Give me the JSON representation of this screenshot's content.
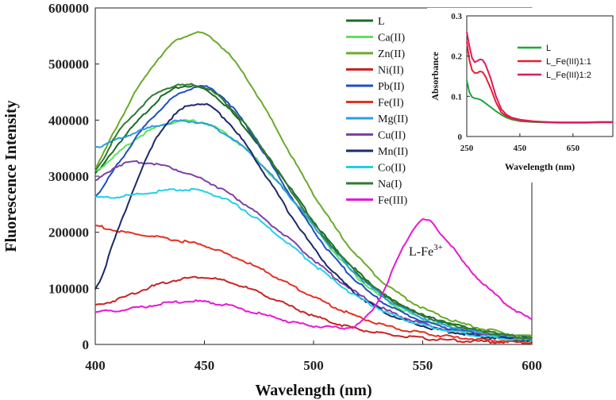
{
  "chart_data": [
    {
      "type": "line",
      "title": "",
      "xlabel": "Wavelength  (nm)",
      "ylabel": "Fluorescence Intensity",
      "xlim": [
        400,
        600
      ],
      "ylim": [
        0,
        600000
      ],
      "x_ticks": [
        400,
        450,
        500,
        550,
        600
      ],
      "y_ticks": [
        0,
        100000,
        200000,
        300000,
        400000,
        500000,
        600000
      ],
      "x": [
        400,
        410,
        420,
        430,
        440,
        450,
        460,
        470,
        480,
        490,
        500,
        510,
        520,
        530,
        540,
        550,
        560,
        570,
        580,
        590,
        600
      ],
      "series": [
        {
          "name": "L",
          "color": "#1b6b25",
          "values": [
            305000,
            355000,
            400000,
            440000,
            460000,
            455000,
            425000,
            380000,
            330000,
            275000,
            220000,
            170000,
            130000,
            95000,
            70000,
            52000,
            40000,
            30000,
            22000,
            16000,
            12000
          ]
        },
        {
          "name": "Ca(II)",
          "color": "#5ce35c",
          "values": [
            310000,
            340000,
            370000,
            390000,
            398000,
            395000,
            375000,
            345000,
            305000,
            260000,
            210000,
            162000,
            120000,
            88000,
            64000,
            46000,
            34000,
            25000,
            18000,
            13000,
            9000
          ]
        },
        {
          "name": "Zn(II)",
          "color": "#6aaa2a",
          "values": [
            318000,
            390000,
            460000,
            515000,
            548000,
            553000,
            522000,
            470000,
            405000,
            335000,
            268000,
            208000,
            158000,
            118000,
            88000,
            65000,
            48000,
            35000,
            26000,
            19000,
            14000
          ]
        },
        {
          "name": "Ni(II)",
          "color": "#c72424",
          "values": [
            70000,
            80000,
            95000,
            108000,
            117000,
            120000,
            112000,
            100000,
            84000,
            67000,
            51000,
            38000,
            28000,
            20000,
            15000,
            11000,
            8000,
            6000,
            5000,
            4000,
            3000
          ]
        },
        {
          "name": "Pb(II)",
          "color": "#1f4fc2",
          "values": [
            265000,
            320000,
            375000,
            420000,
            450000,
            460000,
            435000,
            385000,
            325000,
            262000,
            203000,
            152000,
            112000,
            80000,
            58000,
            42000,
            31000,
            23000,
            17000,
            12000,
            9000
          ]
        },
        {
          "name": "Fe(II)",
          "color": "#e3311e",
          "values": [
            212000,
            202000,
            196000,
            190000,
            184000,
            176000,
            162000,
            145000,
            126000,
            105000,
            85000,
            66000,
            50000,
            37000,
            27000,
            20000,
            15000,
            11000,
            8000,
            6000,
            4000
          ]
        },
        {
          "name": "Mg(II)",
          "color": "#2a9ee0",
          "values": [
            352000,
            365000,
            380000,
            392000,
            398000,
            393000,
            374000,
            344000,
            305000,
            260000,
            212000,
            165000,
            124000,
            91000,
            66000,
            48000,
            35000,
            26000,
            19000,
            14000,
            10000
          ]
        },
        {
          "name": "Cu(II)",
          "color": "#7e3fa8",
          "values": [
            292000,
            318000,
            325000,
            320000,
            308000,
            293000,
            272000,
            246000,
            216000,
            184000,
            151000,
            119000,
            91000,
            68000,
            50000,
            37000,
            27000,
            20000,
            15000,
            11000,
            8000
          ]
        },
        {
          "name": "Mn(II)",
          "color": "#1c2a66",
          "values": [
            100000,
            200000,
            300000,
            380000,
            420000,
            428000,
            400000,
            350000,
            290000,
            228000,
            172000,
            125000,
            89000,
            63000,
            45000,
            33000,
            24000,
            18000,
            13000,
            10000,
            7000
          ]
        },
        {
          "name": "Co(II)",
          "color": "#22d0e8",
          "values": [
            262000,
            263000,
            268000,
            273000,
            276000,
            272000,
            258000,
            235000,
            206000,
            175000,
            143000,
            112000,
            85000,
            64000,
            47000,
            35000,
            26000,
            19000,
            14000,
            10000,
            7000
          ]
        },
        {
          "name": "Na(I)",
          "color": "#2f7a2f",
          "values": [
            312000,
            375000,
            420000,
            452000,
            462000,
            458000,
            430000,
            385000,
            330000,
            272000,
            217000,
            168000,
            128000,
            95000,
            70000,
            52000,
            39000,
            29000,
            21000,
            15000,
            11000
          ]
        },
        {
          "name": "Fe(III)",
          "color": "#e619d3",
          "values": [
            58000,
            60000,
            66000,
            72000,
            76000,
            76000,
            70000,
            60000,
            50000,
            40000,
            33000,
            30000,
            35000,
            80000,
            165000,
            222000,
            190000,
            140000,
            100000,
            68000,
            45000
          ]
        }
      ],
      "annotations": [
        {
          "text_main": "L-Fe",
          "text_sup": "3+"
        }
      ],
      "legend": "top-right"
    },
    {
      "type": "line",
      "title": "",
      "xlabel": "Wavelength (nm)",
      "ylabel": "Absorbance",
      "xlim": [
        250,
        800
      ],
      "ylim": [
        0,
        0.3
      ],
      "x_ticks": [
        250,
        450,
        650
      ],
      "y_ticks": [
        0,
        0.1,
        0.2,
        0.3
      ],
      "x": [
        250,
        260,
        270,
        280,
        290,
        300,
        310,
        320,
        340,
        360,
        380,
        400,
        420,
        450,
        500,
        550,
        600,
        650,
        700,
        750,
        800
      ],
      "series": [
        {
          "name": "L",
          "color": "#1ea63a",
          "values": [
            0.14,
            0.11,
            0.098,
            0.095,
            0.094,
            0.092,
            0.088,
            0.083,
            0.073,
            0.063,
            0.054,
            0.047,
            0.042,
            0.038,
            0.036,
            0.035,
            0.034,
            0.034,
            0.034,
            0.035,
            0.035
          ]
        },
        {
          "name": "L_Fe(III)1:1",
          "color": "#e8202a",
          "values": [
            0.235,
            0.19,
            0.165,
            0.158,
            0.158,
            0.162,
            0.16,
            0.15,
            0.12,
            0.085,
            0.06,
            0.05,
            0.045,
            0.04,
            0.037,
            0.036,
            0.035,
            0.035,
            0.035,
            0.036,
            0.036
          ]
        },
        {
          "name": "L_Fe(III)1:2",
          "color": "#e0185a",
          "values": [
            0.26,
            0.225,
            0.195,
            0.185,
            0.188,
            0.192,
            0.19,
            0.18,
            0.145,
            0.1,
            0.068,
            0.054,
            0.047,
            0.042,
            0.038,
            0.036,
            0.035,
            0.035,
            0.035,
            0.036,
            0.036
          ]
        }
      ],
      "legend": "top-right"
    }
  ]
}
